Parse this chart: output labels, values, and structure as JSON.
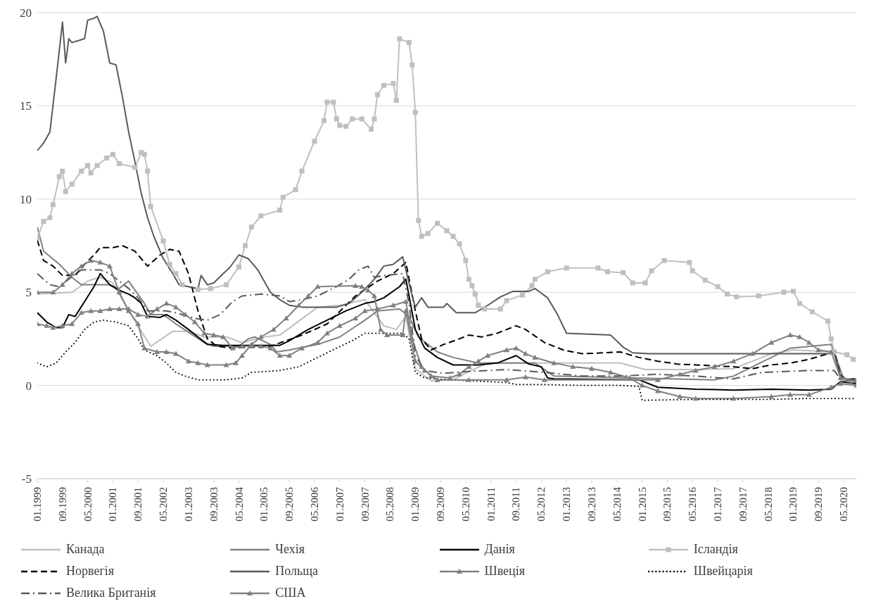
{
  "chart_data": {
    "type": "line",
    "grid": "y",
    "legend": "bottom",
    "ylim": [
      -5,
      20
    ],
    "yticks": [
      -5,
      0,
      5,
      10,
      15,
      20
    ],
    "xlim": [
      "1999-01",
      "2020-09"
    ],
    "xticks": [
      {
        "value": "1999-01",
        "label": "01.1999"
      },
      {
        "value": "1999-09",
        "label": "09.1999"
      },
      {
        "value": "2000-05",
        "label": "05.2000"
      },
      {
        "value": "2001-01",
        "label": "01.2001"
      },
      {
        "value": "2001-09",
        "label": "09.2001"
      },
      {
        "value": "2002-05",
        "label": "05.2002"
      },
      {
        "value": "2003-01",
        "label": "01.2003"
      },
      {
        "value": "2003-09",
        "label": "09.2003"
      },
      {
        "value": "2004-05",
        "label": "05.2004"
      },
      {
        "value": "2005-01",
        "label": "01.2005"
      },
      {
        "value": "2005-09",
        "label": "09.2005"
      },
      {
        "value": "2006-05",
        "label": "05.2006"
      },
      {
        "value": "2007-01",
        "label": "01.2007"
      },
      {
        "value": "2007-09",
        "label": "09.2007"
      },
      {
        "value": "2008-05",
        "label": "05.2008"
      },
      {
        "value": "2009-01",
        "label": "01.2009"
      },
      {
        "value": "2009-09",
        "label": "09.2009"
      },
      {
        "value": "2010-05",
        "label": "05.2010"
      },
      {
        "value": "2011-01",
        "label": "01.2011"
      },
      {
        "value": "2011-09",
        "label": "09.2011"
      },
      {
        "value": "2012-05",
        "label": "05.2012"
      },
      {
        "value": "2013-01",
        "label": "01.2013"
      },
      {
        "value": "2013-09",
        "label": "09.2013"
      },
      {
        "value": "2014-05",
        "label": "05.2014"
      },
      {
        "value": "2015-01",
        "label": "01.2015"
      },
      {
        "value": "2015-09",
        "label": "09.2015"
      },
      {
        "value": "2016-05",
        "label": "05.2016"
      },
      {
        "value": "2017-01",
        "label": "01.2017"
      },
      {
        "value": "2017-09",
        "label": "09.2017"
      },
      {
        "value": "2018-05",
        "label": "05.2018"
      },
      {
        "value": "2019-01",
        "label": "01.2019"
      },
      {
        "value": "2019-09",
        "label": "09.2019"
      },
      {
        "value": "2020-05",
        "label": "05.2020"
      }
    ],
    "series": [
      {
        "name": "Канада",
        "color": "#bfbfbf",
        "line_style": "solid",
        "marker": "none",
        "x": [
          "1999-01",
          "1999-12",
          "2000-05",
          "2000-09",
          "2001-01",
          "2001-06",
          "2002-01",
          "2002-08",
          "2003-01",
          "2003-06",
          "2004-01",
          "2004-06",
          "2005-01",
          "2005-06",
          "2006-06",
          "2007-01",
          "2007-09",
          "2007-12",
          "2008-03",
          "2008-07",
          "2008-10",
          "2009-01",
          "2009-06",
          "2010-01",
          "2010-06",
          "2010-12",
          "2014-06",
          "2015-02",
          "2016-06",
          "2017-06",
          "2017-12",
          "2018-06",
          "2019-01",
          "2020-02",
          "2020-04",
          "2020-09"
        ],
        "values": [
          4.9,
          5.0,
          5.6,
          5.8,
          5.5,
          4.0,
          2.1,
          2.9,
          2.9,
          2.6,
          2.6,
          2.3,
          2.6,
          2.7,
          4.2,
          4.3,
          4.6,
          3.9,
          3.2,
          3.0,
          3.7,
          0.9,
          0.25,
          0.3,
          0.75,
          1.2,
          1.2,
          0.85,
          0.85,
          0.9,
          1.3,
          1.7,
          1.9,
          1.8,
          0.3,
          0.25
        ]
      },
      {
        "name": "Чехія",
        "color": "#808080",
        "line_style": "solid",
        "marker": "none",
        "x": [
          "1999-01",
          "1999-03",
          "1999-08",
          "1999-12",
          "2000-03",
          "2000-12",
          "2001-03",
          "2001-06",
          "2001-11",
          "2002-01",
          "2002-05",
          "2002-09",
          "2003-01",
          "2003-06",
          "2003-09",
          "2004-05",
          "2004-08",
          "2004-10",
          "2005-03",
          "2005-05",
          "2005-09",
          "2006-06",
          "2007-01",
          "2007-09",
          "2008-01",
          "2008-08",
          "2008-11",
          "2009-02",
          "2009-08",
          "2010-01",
          "2010-09",
          "2012-03",
          "2012-09",
          "2016-12",
          "2017-06",
          "2017-12",
          "2018-06",
          "2018-12",
          "2020-01",
          "2020-05",
          "2020-09"
        ],
        "values": [
          8.5,
          7.2,
          6.5,
          5.8,
          5.4,
          5.4,
          5.2,
          5.6,
          4.4,
          3.8,
          3.8,
          3.3,
          2.85,
          2.3,
          2.1,
          2.1,
          2.5,
          2.6,
          2.2,
          1.8,
          1.9,
          2.2,
          2.6,
          3.5,
          4.0,
          4.1,
          3.7,
          2.6,
          1.8,
          1.5,
          1.2,
          1.2,
          0.5,
          0.3,
          0.5,
          1.0,
          1.5,
          2.0,
          2.2,
          0.35,
          0.35
        ]
      },
      {
        "name": "Данія",
        "color": "#000000",
        "line_style": "solid",
        "marker": "none",
        "x": [
          "1999-01",
          "1999-04",
          "1999-07",
          "1999-09",
          "1999-11",
          "2000-01",
          "2000-04",
          "2000-07",
          "2000-09",
          "2000-12",
          "2001-03",
          "2001-06",
          "2001-08",
          "2001-10",
          "2001-12",
          "2002-04",
          "2002-06",
          "2002-09",
          "2003-01",
          "2003-04",
          "2003-07",
          "2003-12",
          "2005-06",
          "2005-09",
          "2006-03",
          "2006-09",
          "2007-03",
          "2007-09",
          "2007-12",
          "2008-03",
          "2008-08",
          "2008-10",
          "2009-01",
          "2009-04",
          "2009-08",
          "2010-01",
          "2010-09",
          "2011-03",
          "2011-09",
          "2012-01",
          "2012-05",
          "2012-07",
          "2012-09",
          "2014-12",
          "2015-06",
          "2016-06",
          "2017-06",
          "2018-06",
          "2019-06",
          "2020-01",
          "2020-04",
          "2020-09"
        ],
        "values": [
          3.9,
          3.4,
          3.1,
          3.1,
          3.8,
          3.7,
          4.5,
          5.3,
          6.0,
          5.4,
          5.1,
          4.9,
          4.7,
          4.4,
          3.7,
          3.65,
          3.8,
          3.5,
          3.0,
          2.6,
          2.2,
          2.15,
          2.15,
          2.4,
          3.0,
          3.5,
          4.0,
          4.4,
          4.5,
          4.7,
          5.3,
          5.7,
          3.0,
          2.0,
          1.5,
          1.1,
          1.1,
          1.2,
          1.6,
          1.15,
          1.0,
          0.4,
          0.35,
          0.3,
          -0.1,
          -0.2,
          -0.25,
          -0.2,
          -0.25,
          -0.2,
          0.2,
          0.1
        ]
      },
      {
        "name": "Ісландія",
        "color": "#bfbfbf",
        "line_style": "solid",
        "marker": "square",
        "x": [
          "1999-01",
          "1999-03",
          "1999-05",
          "1999-06",
          "1999-08",
          "1999-09",
          "1999-10",
          "1999-12",
          "2000-03",
          "2000-05",
          "2000-06",
          "2000-08",
          "2000-11",
          "2001-01",
          "2001-03",
          "2001-08",
          "2001-10",
          "2001-11",
          "2001-12",
          "2002-01",
          "2002-05",
          "2002-07",
          "2002-09",
          "2002-11",
          "2003-04",
          "2003-08",
          "2004-01",
          "2004-05",
          "2004-07",
          "2004-09",
          "2004-12",
          "2005-06",
          "2005-07",
          "2005-11",
          "2006-01",
          "2006-05",
          "2006-08",
          "2006-09",
          "2006-11",
          "2006-12",
          "2007-01",
          "2007-03",
          "2007-05",
          "2007-08",
          "2007-11",
          "2007-12",
          "2008-01",
          "2008-03",
          "2008-06",
          "2008-07",
          "2008-08",
          "2008-11",
          "2008-12",
          "2009-01",
          "2009-02",
          "2009-03",
          "2009-05",
          "2009-08",
          "2009-11",
          "2010-01",
          "2010-03",
          "2010-05",
          "2010-06",
          "2010-07",
          "2010-08",
          "2010-09",
          "2010-11",
          "2011-04",
          "2011-06",
          "2011-11",
          "2012-02",
          "2012-03",
          "2012-07",
          "2013-01",
          "2013-11",
          "2014-02",
          "2014-07",
          "2014-10",
          "2015-02",
          "2015-04",
          "2015-08",
          "2016-04",
          "2016-05",
          "2016-09",
          "2017-01",
          "2017-04",
          "2017-07",
          "2018-02",
          "2018-10",
          "2019-01",
          "2019-03",
          "2019-07",
          "2019-12",
          "2020-01",
          "2020-02",
          "2020-06",
          "2020-08"
        ],
        "values": [
          7.9,
          8.8,
          9.0,
          9.7,
          11.2,
          11.5,
          10.4,
          10.8,
          11.5,
          11.8,
          11.4,
          11.8,
          12.2,
          12.4,
          11.9,
          11.7,
          12.5,
          12.4,
          11.5,
          9.6,
          7.75,
          6.5,
          6.0,
          5.4,
          5.15,
          5.2,
          5.4,
          6.35,
          7.5,
          8.5,
          9.1,
          9.4,
          10.1,
          10.5,
          11.5,
          13.1,
          14.2,
          15.2,
          15.2,
          14.3,
          13.95,
          13.9,
          14.3,
          14.3,
          13.75,
          14.3,
          15.6,
          16.1,
          16.2,
          15.3,
          18.6,
          18.4,
          17.2,
          14.65,
          8.85,
          8.0,
          8.15,
          8.7,
          8.3,
          8.0,
          7.6,
          6.7,
          5.7,
          5.35,
          4.9,
          4.3,
          4.1,
          4.1,
          4.55,
          4.85,
          5.35,
          5.7,
          6.1,
          6.3,
          6.3,
          6.1,
          6.05,
          5.5,
          5.5,
          6.15,
          6.7,
          6.6,
          6.15,
          5.65,
          5.3,
          4.9,
          4.75,
          4.8,
          5.0,
          5.05,
          4.4,
          3.95,
          3.45,
          2.5,
          1.8,
          1.65,
          1.4
        ]
      },
      {
        "name": "Норвегія",
        "color": "#000000",
        "line_style": "dashed",
        "marker": "none",
        "x": [
          "1999-01",
          "1999-03",
          "1999-06",
          "1999-09",
          "2000-01",
          "2000-04",
          "2000-07",
          "2000-09",
          "2001-01",
          "2001-04",
          "2001-08",
          "2001-12",
          "2002-04",
          "2002-07",
          "2002-10",
          "2003-01",
          "2003-04",
          "2003-07",
          "2003-10",
          "2004-03",
          "2005-03",
          "2006-01",
          "2006-09",
          "2007-06",
          "2008-01",
          "2008-06",
          "2008-10",
          "2009-01",
          "2009-03",
          "2009-06",
          "2009-10",
          "2010-03",
          "2010-06",
          "2010-10",
          "2011-03",
          "2011-09",
          "2011-12",
          "2012-06",
          "2012-12",
          "2013-06",
          "2014-01",
          "2014-06",
          "2014-12",
          "2015-06",
          "2015-12",
          "2016-06",
          "2016-12",
          "2017-06",
          "2017-12",
          "2018-06",
          "2018-12",
          "2019-06",
          "2019-12",
          "2020-02",
          "2020-04",
          "2020-06",
          "2020-09"
        ],
        "values": [
          7.8,
          6.7,
          6.4,
          5.9,
          5.9,
          6.5,
          7.0,
          7.4,
          7.4,
          7.5,
          7.2,
          6.4,
          7.0,
          7.3,
          7.2,
          6.0,
          4.0,
          2.5,
          2.1,
          2.0,
          2.1,
          2.7,
          3.3,
          4.8,
          5.6,
          6.0,
          6.6,
          4.0,
          2.5,
          1.9,
          2.2,
          2.5,
          2.7,
          2.6,
          2.8,
          3.2,
          3.0,
          2.3,
          1.9,
          1.7,
          1.75,
          1.8,
          1.5,
          1.3,
          1.15,
          1.1,
          1.05,
          1.0,
          0.9,
          1.1,
          1.2,
          1.4,
          1.7,
          1.85,
          0.55,
          0.3,
          0.35
        ]
      },
      {
        "name": "Польща",
        "color": "#595959",
        "line_style": "solid",
        "marker": "none",
        "x": [
          "1999-01",
          "1999-03",
          "1999-05",
          "1999-07",
          "1999-09",
          "1999-10",
          "1999-11",
          "1999-12",
          "2000-02",
          "2000-04",
          "2000-05",
          "2000-07",
          "2000-08",
          "2000-10",
          "2000-12",
          "2001-02",
          "2001-04",
          "2001-06",
          "2001-08",
          "2001-10",
          "2001-12",
          "2002-02",
          "2002-05",
          "2002-08",
          "2002-10",
          "2003-04",
          "2003-05",
          "2003-07",
          "2003-09",
          "2003-12",
          "2004-02",
          "2004-05",
          "2004-08",
          "2004-11",
          "2005-03",
          "2005-06",
          "2005-09",
          "2006-01",
          "2006-12",
          "2007-04",
          "2007-08",
          "2007-12",
          "2008-03",
          "2008-06",
          "2008-09",
          "2008-12",
          "2009-01",
          "2009-03",
          "2009-05",
          "2009-10",
          "2009-11",
          "2010-02",
          "2010-08",
          "2010-12",
          "2011-04",
          "2011-08",
          "2012-01",
          "2012-03",
          "2012-07",
          "2012-10",
          "2013-01",
          "2014-03",
          "2014-07",
          "2014-10",
          "2015-03",
          "2020-02",
          "2020-04",
          "2020-06",
          "2020-09"
        ],
        "values": [
          12.6,
          13.0,
          13.6,
          16.5,
          19.5,
          17.3,
          18.6,
          18.4,
          18.5,
          18.6,
          19.6,
          19.7,
          19.8,
          19.0,
          17.3,
          17.2,
          15.5,
          13.6,
          12.0,
          10.3,
          9.0,
          8.0,
          6.8,
          6.0,
          5.4,
          5.2,
          5.9,
          5.4,
          5.5,
          6.0,
          6.3,
          7.0,
          6.8,
          6.2,
          5.0,
          4.6,
          4.3,
          4.2,
          4.2,
          4.4,
          5.0,
          5.7,
          6.4,
          6.5,
          6.9,
          4.8,
          4.2,
          4.7,
          4.2,
          4.2,
          4.4,
          3.9,
          3.9,
          4.3,
          4.75,
          5.05,
          5.05,
          5.2,
          4.7,
          3.85,
          2.8,
          2.7,
          2.05,
          1.75,
          1.7,
          1.7,
          0.5,
          0.3,
          0.2
        ]
      },
      {
        "name": "Швеція",
        "color": "#808080",
        "line_style": "solid",
        "marker": "triangle",
        "x": [
          "1999-01",
          "1999-04",
          "1999-06",
          "1999-09",
          "1999-12",
          "2000-03",
          "2000-06",
          "2000-09",
          "2000-12",
          "2001-03",
          "2001-06",
          "2001-09",
          "2001-12",
          "2002-03",
          "2002-06",
          "2002-09",
          "2002-12",
          "2003-03",
          "2003-06",
          "2003-09",
          "2003-12",
          "2004-03",
          "2004-06",
          "2004-09",
          "2004-12",
          "2005-03",
          "2005-06",
          "2005-09",
          "2006-01",
          "2006-06",
          "2006-09",
          "2007-01",
          "2007-06",
          "2007-09",
          "2008-01",
          "2008-06",
          "2008-10",
          "2008-12",
          "2009-03",
          "2009-06",
          "2009-12",
          "2010-03",
          "2010-06",
          "2010-09",
          "2010-12",
          "2011-06",
          "2011-09",
          "2011-12",
          "2012-03",
          "2012-09",
          "2013-03",
          "2013-09",
          "2014-03",
          "2014-09",
          "2015-01",
          "2015-06",
          "2016-01",
          "2016-06",
          "2017-06",
          "2018-06",
          "2018-12",
          "2019-06",
          "2020-01",
          "2020-04",
          "2020-09"
        ],
        "values": [
          3.3,
          3.2,
          3.1,
          3.2,
          3.3,
          3.9,
          4.0,
          4.0,
          4.1,
          4.1,
          4.1,
          3.8,
          3.7,
          4.1,
          4.4,
          4.2,
          3.8,
          3.4,
          2.8,
          2.7,
          2.6,
          2.0,
          2.1,
          2.1,
          2.1,
          2.0,
          1.6,
          1.6,
          2.0,
          2.3,
          2.8,
          3.2,
          3.6,
          4.0,
          4.1,
          4.3,
          4.5,
          2.5,
          1.0,
          0.5,
          0.4,
          0.6,
          1.0,
          1.3,
          1.6,
          1.9,
          2.0,
          1.7,
          1.5,
          1.2,
          1.0,
          0.9,
          0.7,
          0.4,
          0.0,
          -0.3,
          -0.6,
          -0.7,
          -0.7,
          -0.6,
          -0.5,
          -0.5,
          -0.1,
          0.1,
          0.0
        ]
      },
      {
        "name": "Швейцарія",
        "color": "#000000",
        "line_style": "dotted",
        "marker": "none",
        "x": [
          "1999-01",
          "1999-04",
          "1999-07",
          "1999-10",
          "2000-01",
          "2000-04",
          "2000-07",
          "2000-10",
          "2001-02",
          "2001-06",
          "2001-09",
          "2001-11",
          "2002-03",
          "2002-06",
          "2002-09",
          "2002-12",
          "2003-04",
          "2004-01",
          "2004-06",
          "2004-09",
          "2005-06",
          "2005-12",
          "2006-06",
          "2006-12",
          "2007-05",
          "2007-09",
          "2008-01",
          "2008-09",
          "2008-11",
          "2009-01",
          "2009-04",
          "2009-12",
          "2010-06",
          "2011-06",
          "2011-09",
          "2012-06",
          "2013-06",
          "2014-06",
          "2014-12",
          "2015-01",
          "2016-06",
          "2018-06",
          "2019-06",
          "2020-09"
        ],
        "values": [
          1.2,
          1.0,
          1.2,
          1.8,
          2.3,
          3.0,
          3.4,
          3.5,
          3.4,
          3.2,
          2.5,
          1.9,
          1.6,
          1.2,
          0.7,
          0.5,
          0.3,
          0.3,
          0.4,
          0.7,
          0.8,
          1.0,
          1.5,
          2.0,
          2.4,
          2.8,
          2.8,
          2.8,
          2.5,
          0.7,
          0.4,
          0.3,
          0.25,
          0.15,
          0.05,
          0.05,
          0.0,
          0.0,
          -0.05,
          -0.8,
          -0.75,
          -0.75,
          -0.7,
          -0.7
        ]
      },
      {
        "name": "Велика Британія",
        "color": "#595959",
        "line_style": "dashdot",
        "marker": "none",
        "x": [
          "1999-01",
          "1999-05",
          "1999-08",
          "1999-11",
          "2000-03",
          "2000-09",
          "2000-12",
          "2001-03",
          "2001-06",
          "2001-09",
          "2001-12",
          "2002-06",
          "2002-09",
          "2003-03",
          "2003-07",
          "2003-11",
          "2004-03",
          "2004-06",
          "2004-12",
          "2005-06",
          "2005-09",
          "2006-01",
          "2006-06",
          "2006-12",
          "2007-04",
          "2007-07",
          "2007-10",
          "2007-12",
          "2008-03",
          "2008-09",
          "2008-11",
          "2009-01",
          "2009-04",
          "2009-10",
          "2010-06",
          "2011-06",
          "2012-06",
          "2013-06",
          "2014-06",
          "2015-06",
          "2016-06",
          "2017-06",
          "2018-03",
          "2019-06",
          "2020-02",
          "2020-04",
          "2020-09"
        ],
        "values": [
          6.0,
          5.4,
          5.3,
          5.7,
          6.2,
          6.2,
          6.0,
          5.6,
          5.2,
          4.7,
          4.0,
          4.0,
          3.9,
          3.6,
          3.5,
          3.8,
          4.5,
          4.8,
          4.9,
          4.8,
          4.5,
          4.6,
          4.8,
          5.3,
          5.7,
          6.2,
          6.4,
          5.8,
          5.9,
          6.0,
          4.4,
          1.6,
          0.8,
          0.65,
          0.75,
          0.85,
          0.7,
          0.5,
          0.5,
          0.6,
          0.5,
          0.35,
          0.7,
          0.8,
          0.8,
          0.3,
          0.05
        ]
      },
      {
        "name": "США",
        "color": "#808080",
        "line_style": "solid",
        "marker": "triangle",
        "x": [
          "1999-01",
          "1999-06",
          "1999-09",
          "1999-12",
          "2000-03",
          "2000-06",
          "2000-09",
          "2000-12",
          "2001-03",
          "2001-06",
          "2001-09",
          "2001-11",
          "2002-03",
          "2002-06",
          "2002-09",
          "2003-01",
          "2003-04",
          "2003-07",
          "2004-01",
          "2004-04",
          "2004-06",
          "2004-09",
          "2004-12",
          "2005-04",
          "2005-08",
          "2005-12",
          "2006-03",
          "2006-06",
          "2007-06",
          "2007-08",
          "2007-10",
          "2007-12",
          "2008-02",
          "2008-04",
          "2008-09",
          "2008-10",
          "2009-01",
          "2009-04",
          "2009-08",
          "2010-06",
          "2011-06",
          "2011-12",
          "2012-06",
          "2015-06",
          "2016-01",
          "2016-06",
          "2016-12",
          "2017-06",
          "2017-12",
          "2018-06",
          "2018-12",
          "2019-03",
          "2019-06",
          "2019-09",
          "2020-01",
          "2020-04",
          "2020-09"
        ],
        "values": [
          5.0,
          5.0,
          5.4,
          6.0,
          6.4,
          6.7,
          6.6,
          6.4,
          5.0,
          4.0,
          3.3,
          2.0,
          1.8,
          1.8,
          1.7,
          1.3,
          1.2,
          1.1,
          1.1,
          1.2,
          1.6,
          2.2,
          2.6,
          3.0,
          3.6,
          4.3,
          4.8,
          5.3,
          5.35,
          5.3,
          5.1,
          4.8,
          3.0,
          2.7,
          2.7,
          4.0,
          1.3,
          0.8,
          0.3,
          0.3,
          0.3,
          0.45,
          0.3,
          0.3,
          0.6,
          0.8,
          1.0,
          1.3,
          1.7,
          2.3,
          2.7,
          2.6,
          2.3,
          1.9,
          1.8,
          0.4,
          0.25
        ]
      }
    ]
  }
}
